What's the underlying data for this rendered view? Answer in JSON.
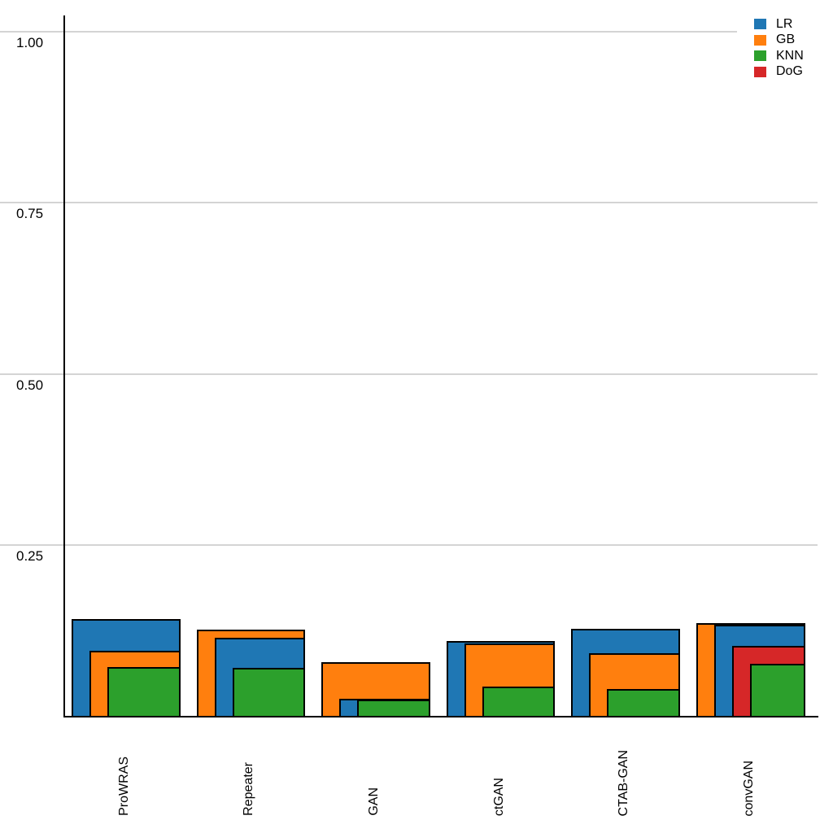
{
  "chart_data": {
    "type": "bar",
    "variant": "nested-overlapping-bars",
    "title": "",
    "xlabel": "",
    "ylabel": "",
    "categories": [
      "ProWRAS",
      "Repeater",
      "GAN",
      "ctGAN",
      "CTAB-GAN",
      "convGAN"
    ],
    "series": [
      {
        "name": "LR",
        "color": "#1f77b4",
        "values": [
          0.142,
          0.114,
          0.025,
          0.109,
          0.127,
          0.133
        ]
      },
      {
        "name": "GB",
        "color": "#ff7f0e",
        "values": [
          0.095,
          0.126,
          0.079,
          0.106,
          0.091,
          0.136
        ]
      },
      {
        "name": "KNN",
        "color": "#2ca02c",
        "values": [
          0.071,
          0.07,
          0.024,
          0.043,
          0.039,
          0.076
        ]
      },
      {
        "name": "DoG",
        "color": "#d62728",
        "values": [
          null,
          null,
          null,
          null,
          null,
          0.102
        ]
      }
    ],
    "yticks": [
      {
        "value": 0.25,
        "label": "0.25"
      },
      {
        "value": 0.5,
        "label": "0.50"
      },
      {
        "value": 0.75,
        "label": "0.75"
      },
      {
        "value": 1.0,
        "label": "1.00"
      }
    ],
    "ylim": [
      0,
      1.02
    ],
    "grid": "horizontal",
    "gridline_color": "#d4d4d4",
    "axis_color": "#000000",
    "bar_outline_color": "#000000",
    "legend_position": "top-right",
    "legend_items": [
      {
        "label": "LR",
        "color": "#1f77b4"
      },
      {
        "label": "GB",
        "color": "#ff7f0e"
      },
      {
        "label": "KNN",
        "color": "#2ca02c"
      },
      {
        "label": "DoG",
        "color": "#d62728"
      }
    ]
  }
}
